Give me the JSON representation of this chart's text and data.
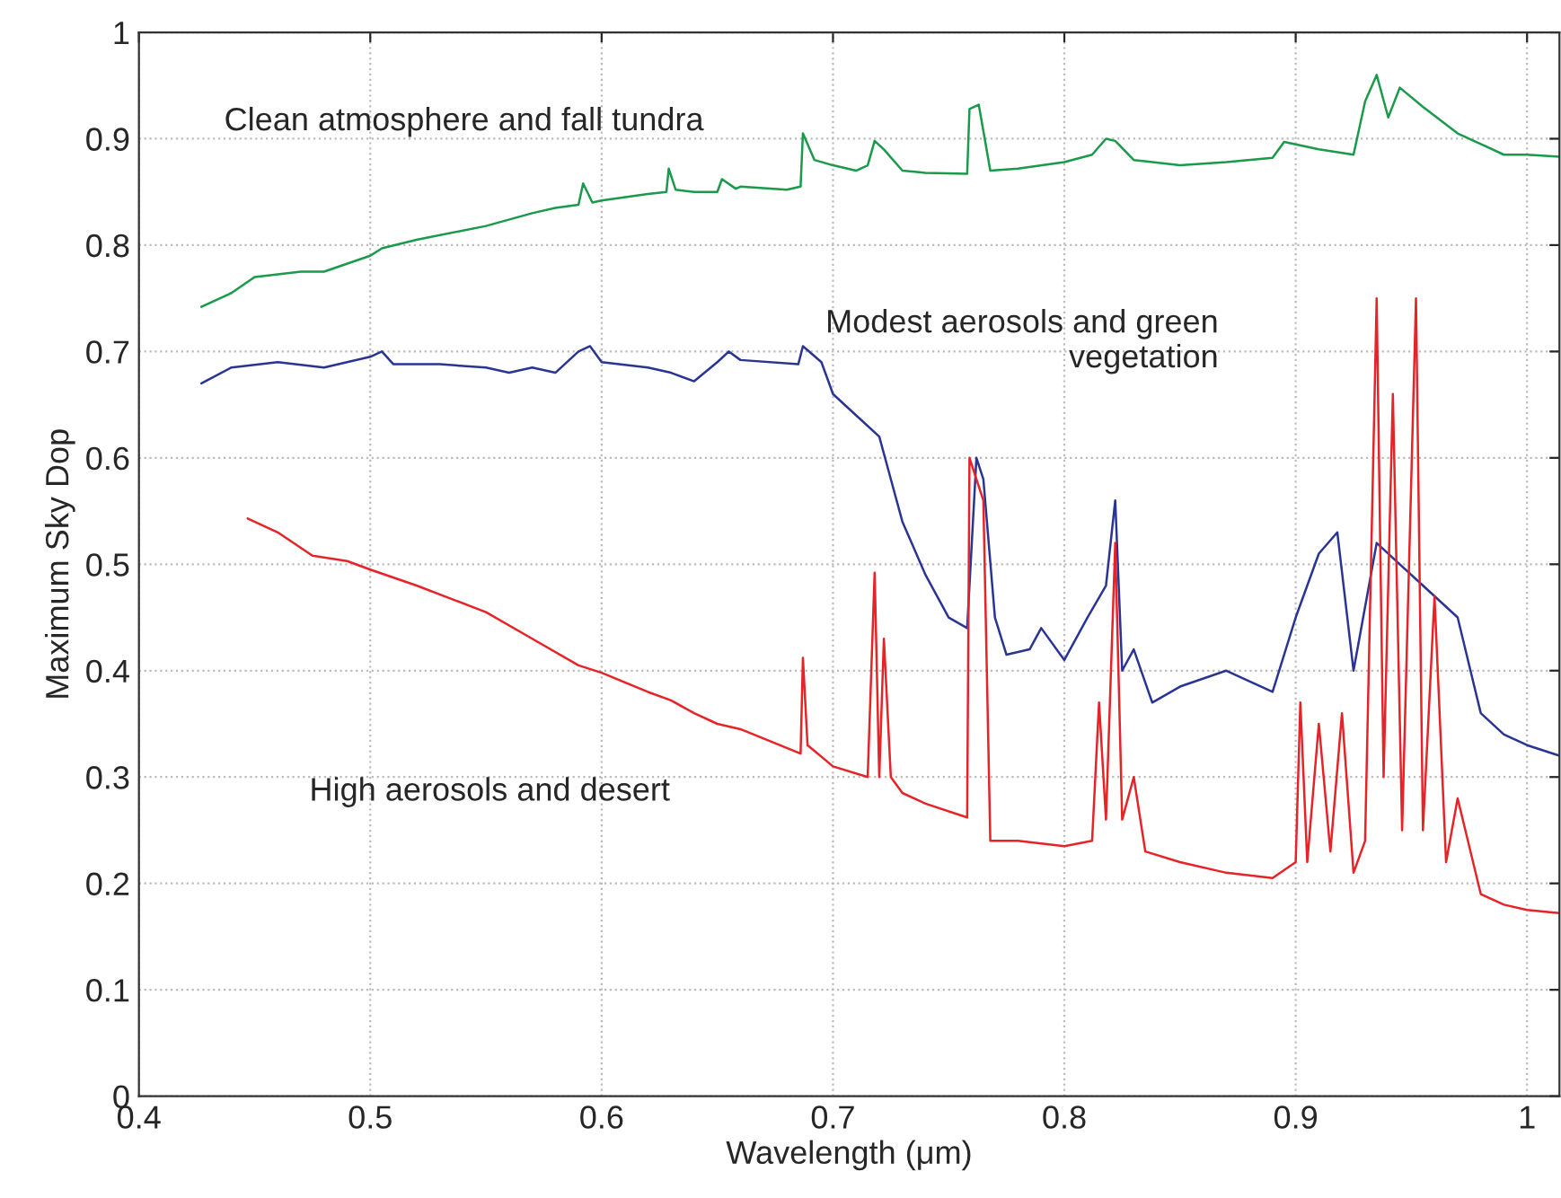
{
  "chart_data": {
    "type": "line",
    "xlabel": "Wavelength (μm)",
    "ylabel": "Maximum Sky Dop",
    "xlim": [
      0.4,
      1.014
    ],
    "ylim": [
      0,
      1
    ],
    "xticks": [
      0.4,
      0.5,
      0.6,
      0.7,
      0.8,
      0.9,
      1
    ],
    "yticks": [
      0,
      0.1,
      0.2,
      0.3,
      0.4,
      0.5,
      0.6,
      0.7,
      0.8,
      0.9,
      1
    ],
    "grid": true,
    "legend": false,
    "series": [
      {
        "name": "Clean atmosphere and fall tundra",
        "color": "#1a9a4a",
        "x": [
          0.427,
          0.44,
          0.45,
          0.47,
          0.48,
          0.5,
          0.505,
          0.52,
          0.55,
          0.57,
          0.58,
          0.59,
          0.592,
          0.596,
          0.6,
          0.62,
          0.628,
          0.629,
          0.632,
          0.64,
          0.65,
          0.652,
          0.658,
          0.66,
          0.68,
          0.686,
          0.687,
          0.692,
          0.7,
          0.71,
          0.715,
          0.718,
          0.722,
          0.73,
          0.74,
          0.758,
          0.759,
          0.763,
          0.768,
          0.78,
          0.8,
          0.812,
          0.818,
          0.822,
          0.83,
          0.85,
          0.87,
          0.89,
          0.895,
          0.91,
          0.925,
          0.93,
          0.935,
          0.94,
          0.945,
          0.955,
          0.97,
          0.98,
          0.99,
          1.0,
          1.014
        ],
        "values": [
          0.742,
          0.755,
          0.77,
          0.775,
          0.775,
          0.79,
          0.797,
          0.805,
          0.818,
          0.83,
          0.835,
          0.838,
          0.858,
          0.84,
          0.842,
          0.848,
          0.85,
          0.872,
          0.852,
          0.85,
          0.85,
          0.862,
          0.853,
          0.855,
          0.852,
          0.855,
          0.905,
          0.88,
          0.875,
          0.87,
          0.875,
          0.898,
          0.89,
          0.87,
          0.868,
          0.867,
          0.928,
          0.932,
          0.87,
          0.872,
          0.878,
          0.885,
          0.9,
          0.898,
          0.88,
          0.875,
          0.878,
          0.882,
          0.897,
          0.89,
          0.885,
          0.935,
          0.96,
          0.92,
          0.948,
          0.93,
          0.905,
          0.895,
          0.885,
          0.885,
          0.883
        ]
      },
      {
        "name": "Modest aerosols and green\nvegetation",
        "color": "#2a3593",
        "x": [
          0.427,
          0.44,
          0.46,
          0.48,
          0.5,
          0.505,
          0.51,
          0.53,
          0.55,
          0.56,
          0.57,
          0.58,
          0.59,
          0.595,
          0.6,
          0.62,
          0.63,
          0.64,
          0.65,
          0.655,
          0.66,
          0.685,
          0.687,
          0.695,
          0.7,
          0.71,
          0.72,
          0.725,
          0.73,
          0.74,
          0.75,
          0.758,
          0.762,
          0.765,
          0.77,
          0.775,
          0.785,
          0.79,
          0.8,
          0.81,
          0.818,
          0.822,
          0.825,
          0.83,
          0.838,
          0.85,
          0.87,
          0.89,
          0.9,
          0.91,
          0.918,
          0.925,
          0.935,
          0.945,
          0.955,
          0.97,
          0.98,
          0.99,
          1.0,
          1.014
        ],
        "values": [
          0.67,
          0.685,
          0.69,
          0.685,
          0.695,
          0.7,
          0.688,
          0.688,
          0.685,
          0.68,
          0.685,
          0.68,
          0.7,
          0.705,
          0.69,
          0.685,
          0.68,
          0.672,
          0.69,
          0.7,
          0.692,
          0.688,
          0.705,
          0.69,
          0.66,
          0.64,
          0.62,
          0.58,
          0.54,
          0.49,
          0.45,
          0.44,
          0.6,
          0.58,
          0.45,
          0.415,
          0.42,
          0.44,
          0.41,
          0.45,
          0.48,
          0.56,
          0.4,
          0.42,
          0.37,
          0.385,
          0.4,
          0.38,
          0.45,
          0.51,
          0.53,
          0.4,
          0.52,
          0.5,
          0.48,
          0.45,
          0.36,
          0.34,
          0.33,
          0.32
        ]
      },
      {
        "name": "High aerosols and desert",
        "color": "#e62428",
        "x": [
          0.447,
          0.46,
          0.475,
          0.49,
          0.5,
          0.52,
          0.55,
          0.57,
          0.59,
          0.6,
          0.62,
          0.63,
          0.64,
          0.65,
          0.66,
          0.686,
          0.687,
          0.689,
          0.7,
          0.715,
          0.718,
          0.72,
          0.722,
          0.725,
          0.73,
          0.74,
          0.758,
          0.759,
          0.765,
          0.768,
          0.78,
          0.8,
          0.812,
          0.815,
          0.818,
          0.822,
          0.825,
          0.83,
          0.835,
          0.85,
          0.87,
          0.89,
          0.9,
          0.902,
          0.905,
          0.91,
          0.915,
          0.92,
          0.925,
          0.93,
          0.935,
          0.938,
          0.942,
          0.946,
          0.952,
          0.955,
          0.96,
          0.965,
          0.97,
          0.98,
          0.99,
          1.0,
          1.014
        ],
        "values": [
          0.543,
          0.53,
          0.508,
          0.503,
          0.495,
          0.48,
          0.455,
          0.43,
          0.405,
          0.398,
          0.38,
          0.372,
          0.36,
          0.35,
          0.345,
          0.322,
          0.412,
          0.33,
          0.31,
          0.3,
          0.492,
          0.3,
          0.43,
          0.3,
          0.285,
          0.275,
          0.262,
          0.6,
          0.56,
          0.24,
          0.24,
          0.235,
          0.24,
          0.37,
          0.26,
          0.52,
          0.26,
          0.3,
          0.23,
          0.22,
          0.21,
          0.205,
          0.22,
          0.37,
          0.22,
          0.35,
          0.23,
          0.36,
          0.21,
          0.24,
          0.75,
          0.3,
          0.66,
          0.25,
          0.75,
          0.25,
          0.47,
          0.22,
          0.28,
          0.19,
          0.18,
          0.175,
          0.172
        ]
      }
    ]
  }
}
